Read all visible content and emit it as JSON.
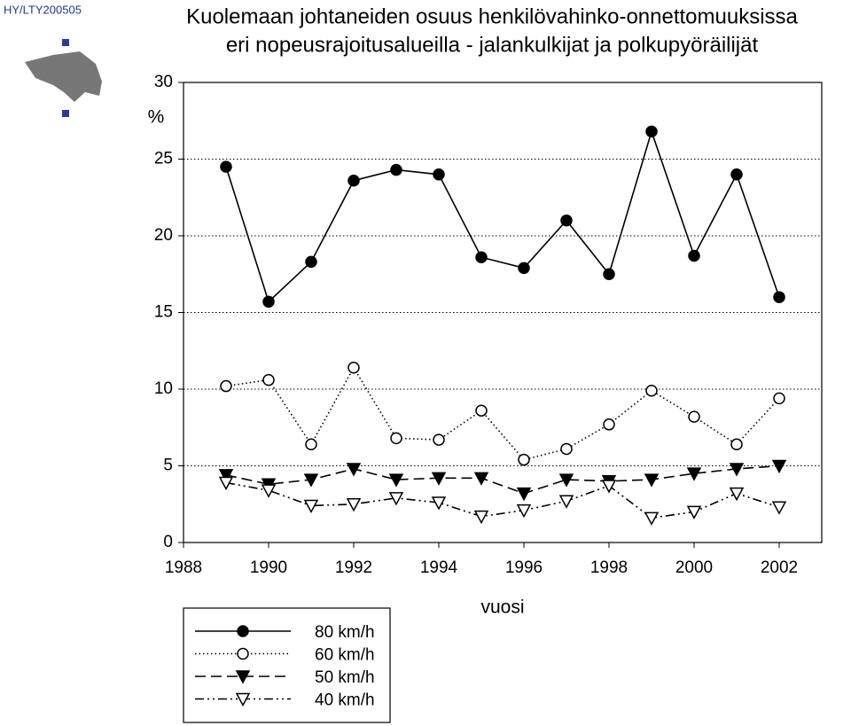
{
  "chart_data": {
    "type": "line",
    "tag": "HY/LTY200505",
    "title": [
      "Kuolemaan johtaneiden osuus henkilövahinko-onnettomuuksissa",
      "eri nopeusrajoitusalueilla -  jalankulkijat ja polkupyöräilijät"
    ],
    "y_label": "%",
    "x_label": "vuosi",
    "x": [
      1989,
      1990,
      1991,
      1992,
      1993,
      1994,
      1995,
      1996,
      1997,
      1998,
      1999,
      2000,
      2001,
      2002
    ],
    "xlim": [
      1988,
      2003
    ],
    "xticks": [
      1988,
      1990,
      1992,
      1994,
      1996,
      1998,
      2000,
      2002
    ],
    "ylim": [
      0,
      30
    ],
    "yticks": [
      0,
      5,
      10,
      15,
      20,
      25,
      30
    ],
    "grid": true,
    "legend": "below-left",
    "series": [
      {
        "name": "80 km/h",
        "color": "#000000",
        "line_style": "solid",
        "marker": "filled-circle",
        "values": [
          24.5,
          15.7,
          18.3,
          23.6,
          24.3,
          24.0,
          18.6,
          17.9,
          21.0,
          17.5,
          26.8,
          18.7,
          24.0,
          16.0
        ]
      },
      {
        "name": "60 km/h",
        "color": "#000000",
        "line_style": "dotted",
        "marker": "open-circle",
        "values": [
          10.2,
          10.6,
          6.4,
          11.4,
          6.8,
          6.7,
          8.6,
          5.4,
          6.1,
          7.7,
          9.9,
          8.2,
          6.4,
          9.4
        ]
      },
      {
        "name": "50 km/h",
        "color": "#000000",
        "line_style": "dashed",
        "marker": "filled-triangle-down",
        "values": [
          4.4,
          3.8,
          4.1,
          4.8,
          4.1,
          4.2,
          4.2,
          3.2,
          4.1,
          4.0,
          4.1,
          4.5,
          4.8,
          5.0
        ]
      },
      {
        "name": "40 km/h",
        "color": "#000000",
        "line_style": "dashdot",
        "marker": "open-triangle-down",
        "values": [
          3.9,
          3.4,
          2.4,
          2.5,
          2.9,
          2.6,
          1.7,
          2.1,
          2.7,
          3.7,
          1.6,
          2.0,
          3.2,
          2.3
        ]
      }
    ]
  }
}
